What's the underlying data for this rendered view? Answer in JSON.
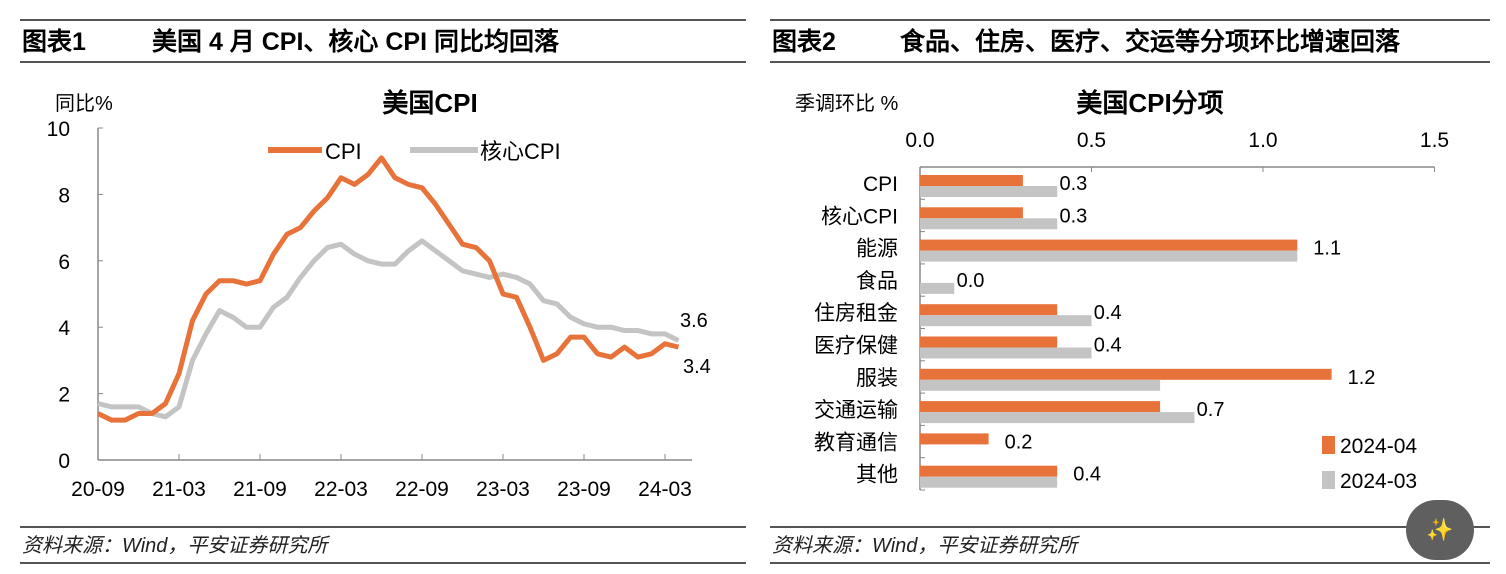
{
  "panels": [
    {
      "label": "图表1",
      "title": "美国 4 月 CPI、核心 CPI 同比均回落",
      "source": "资料来源：Wind，平安证券研究所"
    },
    {
      "label": "图表2",
      "title": "食品、住房、医疗、交运等分项环比增速回落",
      "source": "资料来源：Wind，平安证券研究所"
    }
  ],
  "colors": {
    "cpi": "#E8733A",
    "core": "#C4C4C4",
    "axis": "#888888"
  },
  "badge_icon": "magic-wand-icon",
  "chart_data": [
    {
      "type": "line",
      "title": "美国CPI",
      "ylabel": "同比%",
      "ylim": [
        0,
        10
      ],
      "yticks": [
        "0",
        "2",
        "4",
        "6",
        "8",
        "10"
      ],
      "xtick_labels": [
        "20-09",
        "21-03",
        "21-09",
        "22-03",
        "22-09",
        "23-03",
        "23-09",
        "24-03"
      ],
      "x_start": "2020-09",
      "x_end": "2024-04",
      "legend": "top",
      "series": [
        {
          "name": "CPI",
          "color": "#E8733A",
          "end_label": "3.4",
          "values": [
            1.4,
            1.2,
            1.2,
            1.4,
            1.4,
            1.7,
            2.6,
            4.2,
            5.0,
            5.4,
            5.4,
            5.3,
            5.4,
            6.2,
            6.8,
            7.0,
            7.5,
            7.9,
            8.5,
            8.3,
            8.6,
            9.1,
            8.5,
            8.3,
            8.2,
            7.7,
            7.1,
            6.5,
            6.4,
            6.0,
            5.0,
            4.9,
            4.0,
            3.0,
            3.2,
            3.7,
            3.7,
            3.2,
            3.1,
            3.4,
            3.1,
            3.2,
            3.5,
            3.4
          ]
        },
        {
          "name": "核心CPI",
          "color": "#C4C4C4",
          "end_label": "3.6",
          "values": [
            1.7,
            1.6,
            1.6,
            1.6,
            1.4,
            1.3,
            1.6,
            3.0,
            3.8,
            4.5,
            4.3,
            4.0,
            4.0,
            4.6,
            4.9,
            5.5,
            6.0,
            6.4,
            6.5,
            6.2,
            6.0,
            5.9,
            5.9,
            6.3,
            6.6,
            6.3,
            6.0,
            5.7,
            5.6,
            5.5,
            5.6,
            5.5,
            5.3,
            4.8,
            4.7,
            4.3,
            4.1,
            4.0,
            4.0,
            3.9,
            3.9,
            3.8,
            3.8,
            3.6
          ]
        }
      ]
    },
    {
      "type": "bar",
      "orientation": "horizontal",
      "title": "美国CPI分项",
      "xlabel": "季调环比 %",
      "xlim": [
        0,
        1.5
      ],
      "xticks": [
        "0.0",
        "0.5",
        "1.0",
        "1.5"
      ],
      "legend": "bottom-right",
      "categories": [
        "CPI",
        "核心CPI",
        "能源",
        "食品",
        "住房租金",
        "医疗保健",
        "服装",
        "交通运输",
        "教育通信",
        "其他"
      ],
      "data_labels": [
        "0.3",
        "0.3",
        "1.1",
        "0.0",
        "0.4",
        "0.4",
        "1.2",
        "0.7",
        "0.2",
        "0.4"
      ],
      "series": [
        {
          "name": "2024-04",
          "color": "#E8733A",
          "values": [
            0.3,
            0.3,
            1.1,
            0.0,
            0.4,
            0.4,
            1.2,
            0.7,
            0.2,
            0.4
          ]
        },
        {
          "name": "2024-03",
          "color": "#C4C4C4",
          "values": [
            0.4,
            0.4,
            1.1,
            0.1,
            0.5,
            0.5,
            0.7,
            0.8,
            0.0,
            0.4
          ]
        }
      ]
    }
  ]
}
